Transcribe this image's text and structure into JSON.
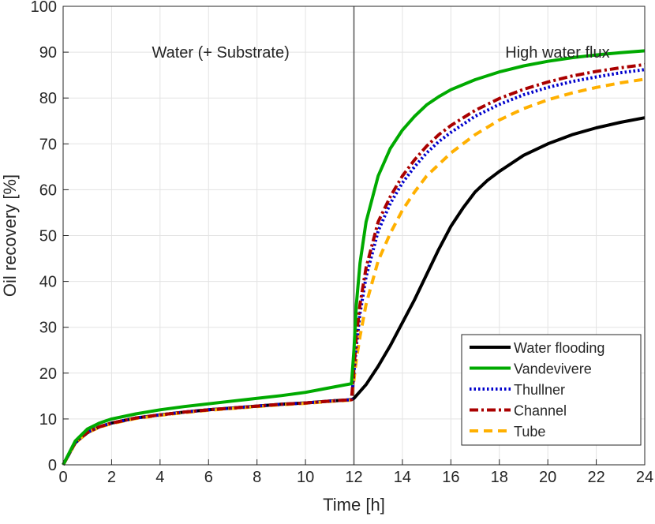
{
  "chart_data": {
    "type": "line",
    "xlabel": "Time [h]",
    "ylabel": "Oil recovery [%]",
    "xlim": [
      0,
      24
    ],
    "ylim": [
      0,
      100
    ],
    "xticks": [
      0,
      2,
      4,
      6,
      8,
      10,
      12,
      14,
      16,
      18,
      20,
      22,
      24
    ],
    "yticks": [
      0,
      10,
      20,
      30,
      40,
      50,
      60,
      70,
      80,
      90,
      100
    ],
    "grid": true,
    "legend_position": "bottom-right",
    "vertical_line_x": 12,
    "annotations": [
      {
        "text": "Water (+ Substrate)",
        "x": 6.5,
        "y": 90
      },
      {
        "text": "High water flux",
        "x": 20.4,
        "y": 90
      }
    ],
    "series": [
      {
        "name": "Water flooding",
        "color": "#000000",
        "dash": "solid",
        "x": [
          0,
          0.5,
          1,
          1.5,
          2,
          3,
          4,
          5,
          6,
          7,
          8,
          9,
          10,
          11,
          11.9,
          12,
          12.5,
          13,
          13.5,
          14,
          14.5,
          15,
          15.5,
          16,
          16.5,
          17,
          17.5,
          18,
          19,
          20,
          21,
          22,
          23,
          24
        ],
        "y": [
          0,
          4.8,
          7,
          8.3,
          9.1,
          10.2,
          10.9,
          11.5,
          12,
          12.4,
          12.8,
          13.2,
          13.5,
          13.9,
          14.2,
          14.5,
          17.5,
          21.5,
          26,
          31,
          36,
          41.5,
          47,
          52,
          56,
          59.5,
          62,
          64,
          67.5,
          70,
          72,
          73.5,
          74.7,
          75.7
        ]
      },
      {
        "name": "Vandevivere",
        "color": "#00aa00",
        "dash": "solid",
        "x": [
          0,
          0.5,
          1,
          1.5,
          2,
          3,
          4,
          5,
          6,
          7,
          8,
          9,
          10,
          11,
          11.9,
          12,
          12.1,
          12.25,
          12.5,
          13,
          13.5,
          14,
          14.5,
          15,
          15.5,
          16,
          17,
          18,
          19,
          20,
          21,
          22,
          23,
          24
        ],
        "y": [
          0,
          5.2,
          7.8,
          9.1,
          10,
          11.1,
          12,
          12.7,
          13.3,
          13.9,
          14.5,
          15.1,
          15.8,
          16.8,
          17.7,
          25,
          35,
          44,
          53,
          63,
          69,
          73,
          76,
          78.5,
          80.3,
          81.8,
          84,
          85.7,
          87,
          88,
          88.8,
          89.4,
          89.9,
          90.3
        ]
      },
      {
        "name": "Thullner",
        "color": "#0000cc",
        "dash": "dotted",
        "x": [
          0,
          0.5,
          1,
          1.5,
          2,
          3,
          4,
          5,
          6,
          7,
          8,
          9,
          10,
          11,
          11.9,
          12,
          12.1,
          12.25,
          12.5,
          13,
          13.5,
          14,
          14.5,
          15,
          15.5,
          16,
          17,
          18,
          19,
          20,
          21,
          22,
          23,
          24
        ],
        "y": [
          0,
          4.9,
          7.1,
          8.3,
          9.1,
          10.2,
          10.9,
          11.5,
          12,
          12.4,
          12.8,
          13.2,
          13.5,
          13.9,
          14.2,
          20,
          26,
          33,
          41,
          51,
          57,
          61.5,
          65,
          68,
          70.5,
          72.5,
          76,
          78.6,
          80.7,
          82.3,
          83.6,
          84.6,
          85.5,
          86.2
        ]
      },
      {
        "name": "Channel",
        "color": "#aa0000",
        "dash": "dashdot",
        "x": [
          0,
          0.5,
          1,
          1.5,
          2,
          3,
          4,
          5,
          6,
          7,
          8,
          9,
          10,
          11,
          11.9,
          12,
          12.1,
          12.25,
          12.5,
          13,
          13.5,
          14,
          14.5,
          15,
          15.5,
          16,
          17,
          18,
          19,
          20,
          21,
          22,
          23,
          24
        ],
        "y": [
          0,
          4.9,
          7.1,
          8.3,
          9.1,
          10.2,
          10.9,
          11.5,
          12,
          12.4,
          12.8,
          13.2,
          13.5,
          13.9,
          14.2,
          21,
          28,
          35,
          43,
          53,
          58.5,
          63,
          66.5,
          69.5,
          72,
          74,
          77.3,
          79.9,
          81.9,
          83.5,
          84.8,
          85.8,
          86.6,
          87.3
        ]
      },
      {
        "name": "Tube",
        "color": "#ffb000",
        "dash": "dashed",
        "x": [
          0,
          0.5,
          1,
          1.5,
          2,
          3,
          4,
          5,
          6,
          7,
          8,
          9,
          10,
          11,
          11.9,
          12,
          12.1,
          12.25,
          12.5,
          13,
          13.5,
          14,
          14.5,
          15,
          15.5,
          16,
          17,
          18,
          19,
          20,
          21,
          22,
          23,
          24
        ],
        "y": [
          0,
          4.8,
          7,
          8.2,
          9,
          10.1,
          10.8,
          11.4,
          11.9,
          12.3,
          12.7,
          13.1,
          13.4,
          13.8,
          14.1,
          18.5,
          23,
          28,
          35,
          44.5,
          50.5,
          55.5,
          59.5,
          63,
          65.5,
          68,
          72,
          75.2,
          77.7,
          79.6,
          81.1,
          82.3,
          83.3,
          84.1
        ]
      }
    ]
  }
}
